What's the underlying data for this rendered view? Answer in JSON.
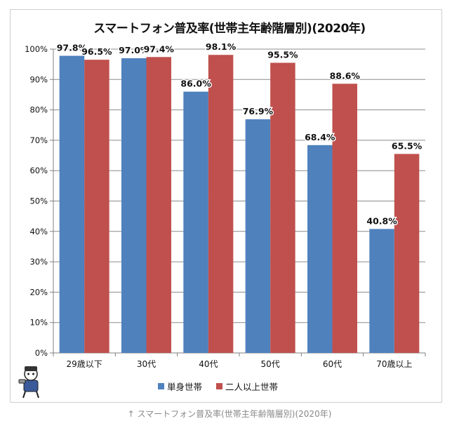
{
  "caption": "↑ スマートフォン普及率(世帯主年齢階層別)(2020年)",
  "chart_data": {
    "type": "bar",
    "title": "スマートフォン普及率(世帯主年齢階層別)(2020年)",
    "categories": [
      "29歳以下",
      "30代",
      "40代",
      "50代",
      "60代",
      "70歳以上"
    ],
    "series": [
      {
        "name": "単身世帯",
        "color": "#4f81bd",
        "values": [
          97.8,
          97.0,
          86.0,
          76.9,
          68.4,
          40.8
        ],
        "labels": [
          "97.8%",
          "97.0%",
          "86.0%",
          "76.9%",
          "68.4%",
          "40.8%"
        ]
      },
      {
        "name": "二人以上世帯",
        "color": "#c0504d",
        "values": [
          96.5,
          97.4,
          98.1,
          95.5,
          88.6,
          65.5
        ],
        "labels": [
          "96.5%",
          "97.4%",
          "98.1%",
          "95.5%",
          "88.6%",
          "65.5%"
        ]
      }
    ],
    "ylim": [
      0,
      100
    ],
    "yticks": [
      "0%",
      "10%",
      "20%",
      "30%",
      "40%",
      "50%",
      "60%",
      "70%",
      "80%",
      "90%",
      "100%"
    ],
    "grid": true,
    "legend_position": "bottom"
  }
}
